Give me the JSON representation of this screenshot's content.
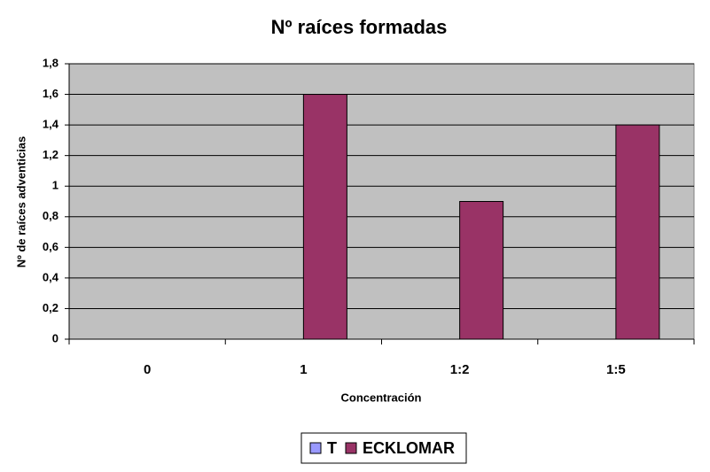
{
  "chart_data": {
    "type": "bar",
    "title": "Nº raíces formadas",
    "x_label": "Concentración",
    "y_label": "Nº de raíces adventicias",
    "categories": [
      "0",
      "1",
      "1:2",
      "1:5"
    ],
    "series": [
      {
        "name": "T",
        "color": "#9999ff",
        "values": [
          0,
          0,
          0,
          0
        ]
      },
      {
        "name": "ECKLOMAR",
        "color": "#993366",
        "values": [
          0,
          1.6,
          0.9,
          1.4
        ]
      }
    ],
    "ylim": [
      0,
      1.8
    ],
    "yticks": [
      0,
      {
        "value": 0.2,
        "label": "0,2"
      },
      {
        "value": 0.4,
        "label": "0,4"
      },
      {
        "value": 0.6,
        "label": "0,6"
      },
      {
        "value": 0.8,
        "label": "0,8"
      },
      1,
      {
        "value": 1.2,
        "label": "1,2"
      },
      {
        "value": 1.4,
        "label": "1,4"
      },
      {
        "value": 1.6,
        "label": "1,6"
      },
      {
        "value": 1.8,
        "label": "1,8"
      }
    ],
    "grid": true,
    "plot_background": "#c0c0c0",
    "legend": "bottom"
  }
}
